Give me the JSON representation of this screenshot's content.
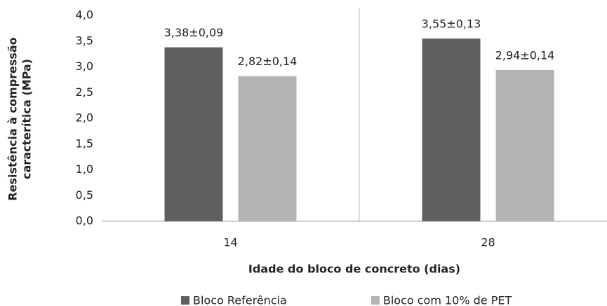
{
  "chart_data": {
    "type": "bar",
    "xlabel": "Idade do bloco de concreto (dias)",
    "ylabel": [
      "Resistência à compressão",
      "caracterítica (MPa)"
    ],
    "categories": [
      "14",
      "28"
    ],
    "series": [
      {
        "name": "Bloco Referência",
        "color": "#5f5f5f",
        "values": [
          3.38,
          3.55
        ],
        "value_labels": [
          "3,38±0,09",
          "3,55±0,13"
        ]
      },
      {
        "name": "Bloco com 10% de PET",
        "color": "#b3b3b3",
        "values": [
          2.82,
          2.94
        ],
        "value_labels": [
          "2,82±0,14",
          "2,94±0,14"
        ]
      }
    ],
    "ylim": [
      0,
      4
    ],
    "yticks": [
      {
        "value": 0,
        "label": "0,0"
      },
      {
        "value": 0.5,
        "label": "0,5"
      },
      {
        "value": 1,
        "label": "1,0"
      },
      {
        "value": 1.5,
        "label": "1,5"
      },
      {
        "value": 2,
        "label": "2,0"
      },
      {
        "value": 2.5,
        "label": "2,5"
      },
      {
        "value": 3,
        "label": "3,0"
      },
      {
        "value": 3.5,
        "label": "3,5"
      },
      {
        "value": 4,
        "label": "4,0"
      }
    ],
    "grid": false,
    "legend": "bottom"
  }
}
